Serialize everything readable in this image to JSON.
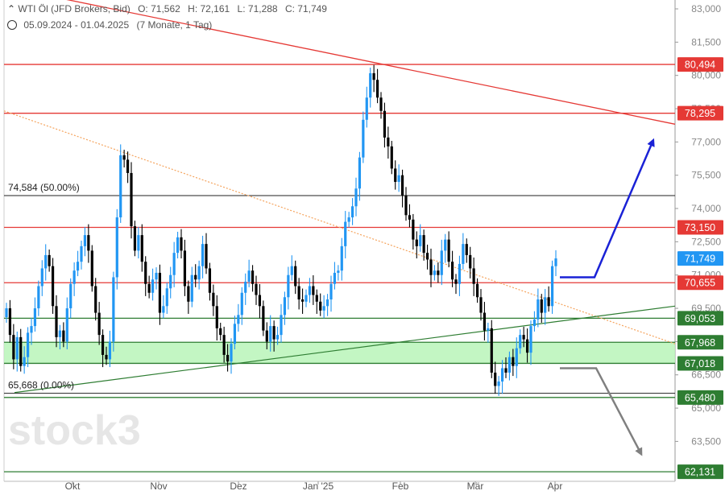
{
  "header": {
    "instrument": "WTI Öl (JFD Brokers, Bid)",
    "open": "O: 71,562",
    "high": "H: 72,161",
    "low": "L: 71,288",
    "close": "C: 71,749",
    "date_range": "05.09.2024 - 01.04.2025",
    "period": "(7 Monate, 1 Tag)"
  },
  "watermark": "stock3",
  "chart_data": {
    "type": "candlestick",
    "y_axis_ticks": [
      "83,000",
      "81,500",
      "80,000",
      "78,500",
      "77,000",
      "75,500",
      "74,000",
      "72,500",
      "71,000",
      "69,500",
      "68,000",
      "66,500",
      "65,000",
      "63,500"
    ],
    "x_axis_labels": [
      "Okt",
      "Nov",
      "Dez",
      "Jan '25",
      "Feb",
      "Mär",
      "Apr"
    ],
    "ylim": [
      61.7,
      83.4
    ],
    "price_tags": [
      {
        "value": 80.494,
        "label": "80,494",
        "color": "#e53935"
      },
      {
        "value": 78.295,
        "label": "78,295",
        "color": "#e53935"
      },
      {
        "value": 73.15,
        "label": "73,150",
        "color": "#e53935"
      },
      {
        "value": 71.749,
        "label": "71,749",
        "color": "#2196f3"
      },
      {
        "value": 70.655,
        "label": "70,655",
        "color": "#e53935"
      },
      {
        "value": 69.053,
        "label": "69,053",
        "color": "#2e7d32"
      },
      {
        "value": 67.968,
        "label": "67,968",
        "color": "#2e7d32"
      },
      {
        "value": 67.018,
        "label": "67,018",
        "color": "#2e7d32"
      },
      {
        "value": 65.48,
        "label": "65,480",
        "color": "#2e7d32"
      },
      {
        "value": 62.131,
        "label": "62,131",
        "color": "#2e7d32"
      }
    ],
    "fib_labels": [
      {
        "value": 74.584,
        "text": "74,584 (50.00%)"
      },
      {
        "value": 65.668,
        "text": "65,668 (0.00%)"
      }
    ],
    "support_zone": [
      67.018,
      67.968
    ],
    "colors": {
      "up": "#2196f3",
      "down": "#000000",
      "resistance": "#e53935",
      "support": "#2e7d32",
      "zone": "#b8f5b8",
      "bull_arrow": "#1a22d6",
      "bear_arrow": "#808080",
      "dotted": "#f5a35c"
    },
    "series_close": [
      69.5,
      68.3,
      67.2,
      68.2,
      66.9,
      67.3,
      68.4,
      68.7,
      69.5,
      70.5,
      71.3,
      71.9,
      71.4,
      69.6,
      68.2,
      68.5,
      68.0,
      69.5,
      70.6,
      71.2,
      71.6,
      72.3,
      72.8,
      72.1,
      70.5,
      69.3,
      68.3,
      67.4,
      67.2,
      68.0,
      70.9,
      73.6,
      76.4,
      76.2,
      75.6,
      73.2,
      72.1,
      72.8,
      71.6,
      70.6,
      70.2,
      70.8,
      71.1,
      69.3,
      69.6,
      70.4,
      71.0,
      72.0,
      72.7,
      72.1,
      70.5,
      69.8,
      71.0,
      70.8,
      71.4,
      72.4,
      71.3,
      70.2,
      69.6,
      68.6,
      68.3,
      67.4,
      67.1,
      67.9,
      68.8,
      69.2,
      70.2,
      70.7,
      71.2,
      70.6,
      70.1,
      69.6,
      68.5,
      68.0,
      68.7,
      68.1,
      68.3,
      69.2,
      70.0,
      71.0,
      71.4,
      70.5,
      69.9,
      69.8,
      70.1,
      70.5,
      70.1,
      69.8,
      69.4,
      69.6,
      69.9,
      70.6,
      71.1,
      71.2,
      72.3,
      73.4,
      73.6,
      74.1,
      74.9,
      76.3,
      78.0,
      79.0,
      80.1,
      79.8,
      79.0,
      78.4,
      77.2,
      76.8,
      75.8,
      75.2,
      75.5,
      74.6,
      73.7,
      73.5,
      72.6,
      72.3,
      72.8,
      72.0,
      71.7,
      71.0,
      71.2,
      71.0,
      72.1,
      72.6,
      71.6,
      70.8,
      70.6,
      71.5,
      72.4,
      71.9,
      71.3,
      70.6,
      70.0,
      69.3,
      68.5,
      68.6,
      66.6,
      66.0,
      66.2,
      66.8,
      66.6,
      67.3,
      66.9,
      67.7,
      68.3,
      68.1,
      67.5,
      68.7,
      69.0,
      69.9,
      69.3,
      70.0,
      69.6,
      71.4,
      71.749
    ]
  }
}
